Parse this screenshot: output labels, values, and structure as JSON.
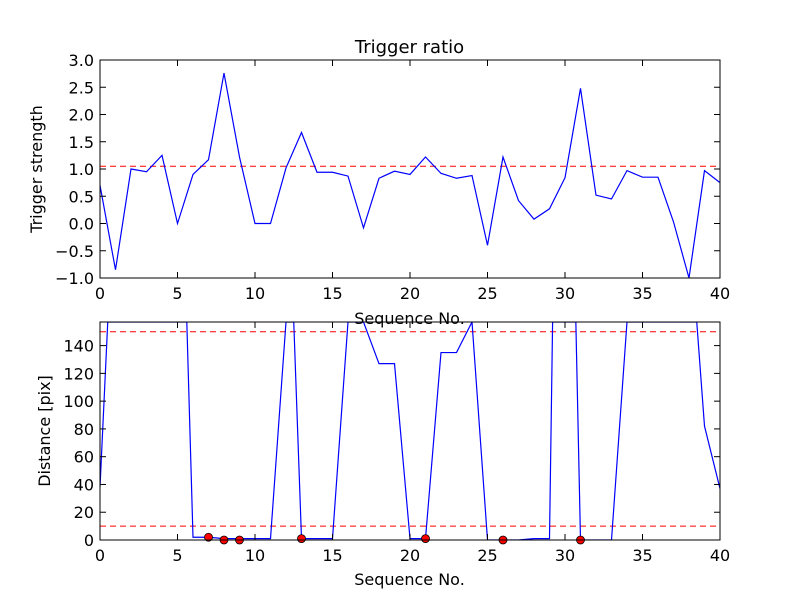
{
  "chart_data": [
    {
      "type": "line",
      "title": "Trigger ratio",
      "xlabel": "Sequence No.",
      "ylabel": "Trigger strength",
      "xlim": [
        0,
        40
      ],
      "ylim": [
        -1.0,
        3.0
      ],
      "xticks": [
        0,
        5,
        10,
        15,
        20,
        25,
        30,
        35,
        40
      ],
      "xtick_labels": [
        "0",
        "5",
        "10",
        "15",
        "20",
        "25",
        "30",
        "35",
        "40"
      ],
      "yticks": [
        -1.0,
        -0.5,
        0.0,
        0.5,
        1.0,
        1.5,
        2.0,
        2.5,
        3.0
      ],
      "ytick_labels": [
        "−1.0",
        "−0.5",
        "0.0",
        "0.5",
        "1.0",
        "1.5",
        "2.0",
        "2.5",
        "3.0"
      ],
      "grid": false,
      "series": [
        {
          "color": "#0000ff",
          "x": [
            0,
            1,
            2,
            3,
            4,
            5,
            6,
            7,
            8,
            9,
            10,
            11,
            12,
            13,
            14,
            15,
            16,
            17,
            18,
            19,
            20,
            21,
            22,
            23,
            24,
            25,
            26,
            27,
            28,
            29,
            30,
            31,
            32,
            33,
            34,
            35,
            36,
            37,
            38,
            39,
            40
          ],
          "y": [
            0.7,
            -0.85,
            1.0,
            0.95,
            1.25,
            0.0,
            0.9,
            1.17,
            2.76,
            1.22,
            0.0,
            0.0,
            1.02,
            1.67,
            0.94,
            0.94,
            0.87,
            -0.08,
            0.83,
            0.96,
            0.9,
            1.22,
            0.92,
            0.83,
            0.88,
            -0.4,
            1.22,
            0.42,
            0.08,
            0.27,
            0.84,
            2.48,
            0.52,
            0.45,
            0.97,
            0.85,
            0.85,
            0.03,
            -1.0,
            0.97,
            0.75
          ]
        }
      ],
      "hlines": [
        {
          "y": 1.05,
          "color": "#ff0000",
          "style": "dashed"
        }
      ]
    },
    {
      "type": "line",
      "title": "",
      "xlabel": "Sequence No.",
      "ylabel": "Distance [pix]",
      "xlim": [
        0,
        40
      ],
      "ylim": [
        0,
        157
      ],
      "xticks": [
        0,
        5,
        10,
        15,
        20,
        25,
        30,
        35,
        40
      ],
      "xtick_labels": [
        "0",
        "5",
        "10",
        "15",
        "20",
        "25",
        "30",
        "35",
        "40"
      ],
      "yticks": [
        0,
        20,
        40,
        60,
        80,
        100,
        120,
        140
      ],
      "ytick_labels": [
        "0",
        "20",
        "40",
        "60",
        "80",
        "100",
        "120",
        "140"
      ],
      "grid": false,
      "series": [
        {
          "color": "#0000ff",
          "x": [
            0,
            0.5,
            1,
            2,
            3,
            4,
            5,
            5.6,
            6,
            7,
            8,
            9,
            10,
            11,
            12,
            12.5,
            13,
            14,
            15,
            16,
            17,
            18,
            19,
            20,
            21,
            22,
            23,
            24,
            25,
            26,
            27,
            28,
            29,
            29.2,
            30,
            30.7,
            31,
            32,
            33,
            34,
            35,
            36,
            37,
            38,
            38.5,
            39,
            40
          ],
          "y": [
            38,
            157,
            157,
            157,
            157,
            157,
            157,
            157,
            2,
            2,
            1,
            1,
            1,
            1,
            157,
            157,
            1,
            1,
            1,
            157,
            157,
            127,
            127,
            1,
            1,
            135,
            135,
            157,
            0,
            0,
            0,
            1,
            1,
            157,
            157,
            157,
            0,
            0,
            0,
            157,
            157,
            157,
            157,
            157,
            157,
            82,
            37
          ]
        }
      ],
      "hlines": [
        {
          "y": 150,
          "color": "#ff0000",
          "style": "dashed"
        },
        {
          "y": 10,
          "color": "#ff0000",
          "style": "dashed"
        }
      ],
      "markers": {
        "color": "#ff0000",
        "x": [
          7,
          8,
          9,
          13,
          21,
          26,
          31
        ],
        "y": [
          2,
          0,
          0,
          1,
          1,
          0,
          0
        ]
      }
    }
  ]
}
